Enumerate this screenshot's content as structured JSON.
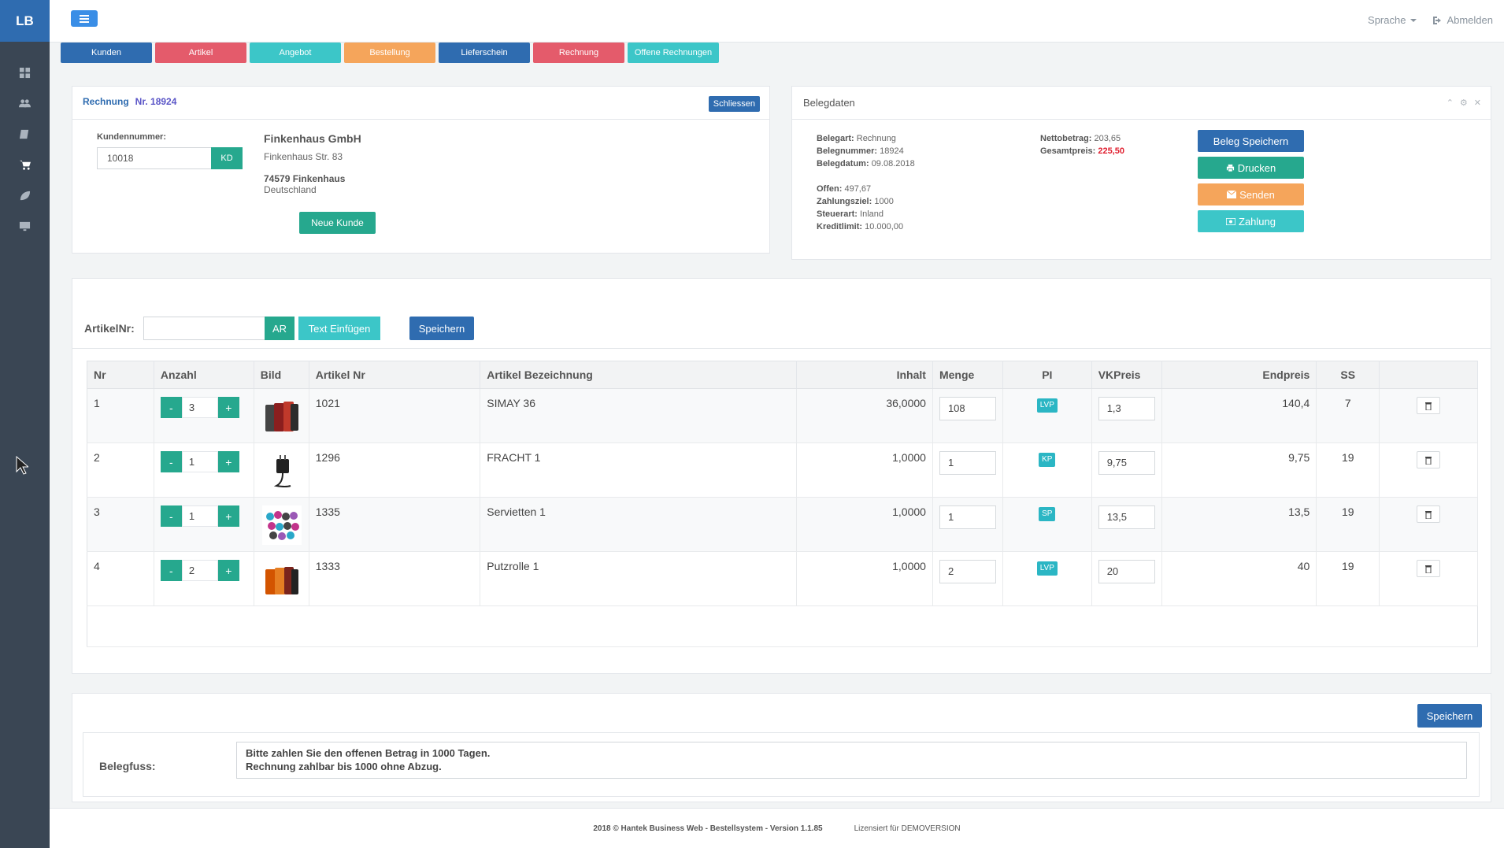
{
  "app": {
    "logo": "LB"
  },
  "sidebar": {
    "items": [
      {
        "icon": "dashboard-icon"
      },
      {
        "icon": "users-icon"
      },
      {
        "icon": "book-icon"
      },
      {
        "icon": "cart-icon"
      },
      {
        "icon": "leaf-icon"
      },
      {
        "icon": "monitor-icon"
      }
    ]
  },
  "topbar": {
    "language": "Sprache",
    "logout": "Abmelden"
  },
  "quicknav": [
    {
      "label": "Kunden",
      "color": "#2f6cb0"
    },
    {
      "label": "Artikel",
      "color": "#e45b6b"
    },
    {
      "label": "Angebot",
      "color": "#3cc6c8"
    },
    {
      "label": "Bestellung",
      "color": "#f5a55b"
    },
    {
      "label": "Lieferschein",
      "color": "#2f6cb0"
    },
    {
      "label": "Rechnung",
      "color": "#e45b6b"
    },
    {
      "label": "Offene Rechnungen",
      "color": "#3cc6c8"
    }
  ],
  "rechnung": {
    "title": "Rechnung",
    "number": "Nr. 18924",
    "close_label": "Schliessen",
    "kundennummer_label": "Kundennummer:",
    "kundennummer_value": "10018",
    "kd_label": "KD",
    "customer": {
      "name": "Finkenhaus GmbH",
      "street": "Finkenhaus Str. 83",
      "city": "74579 Finkenhaus",
      "country": "Deutschland"
    },
    "new_customer_label": "Neue Kunde"
  },
  "belegdaten": {
    "title": "Belegdaten",
    "belegart_label": "Belegart:",
    "belegart": "Rechnung",
    "belegnummer_label": "Belegnummer:",
    "belegnummer": "18924",
    "belegdatum_label": "Belegdatum:",
    "belegdatum": "09.08.2018",
    "offen_label": "Offen:",
    "offen": "497,67",
    "zahlungsziel_label": "Zahlungsziel:",
    "zahlungsziel": "1000",
    "steuerart_label": "Steuerart:",
    "steuerart": "Inland",
    "kreditlimit_label": "Kreditlimit:",
    "kreditlimit": "10.000,00",
    "netto_label": "Nettobetrag:",
    "netto": "203,65",
    "gesamt_label": "Gesamtpreis:",
    "gesamt": "225,50",
    "buttons": {
      "save": "Beleg Speichern",
      "print": "Drucken",
      "send": "Senden",
      "payment": "Zahlung"
    }
  },
  "items": {
    "artikelnr_label": "ArtikelNr:",
    "ar_label": "AR",
    "text_insert_label": "Text Einfügen",
    "save_label": "Speichern",
    "columns": [
      "Nr",
      "Anzahl",
      "Bild",
      "Artikel Nr",
      "Artikel Bezeichnung",
      "Inhalt",
      "Menge",
      "PI",
      "VKPreis",
      "Endpreis",
      "SS"
    ],
    "rows": [
      {
        "nr": "1",
        "anzahl": "3",
        "artikel_nr": "1021",
        "bezeichnung": "SIMAY 36",
        "inhalt": "36,0000",
        "menge": "108",
        "pi": "LVP",
        "vkpreis": "1,3",
        "endpreis": "140,4",
        "ss": "7",
        "img": "phone-cases"
      },
      {
        "nr": "2",
        "anzahl": "1",
        "artikel_nr": "1296",
        "bezeichnung": "FRACHT 1",
        "inhalt": "1,0000",
        "menge": "1",
        "pi": "KP",
        "vkpreis": "9,75",
        "endpreis": "9,75",
        "ss": "19",
        "img": "charger"
      },
      {
        "nr": "3",
        "anzahl": "1",
        "artikel_nr": "1335",
        "bezeichnung": "Servietten 1",
        "inhalt": "1,0000",
        "menge": "1",
        "pi": "SP",
        "vkpreis": "13,5",
        "endpreis": "13,5",
        "ss": "19",
        "img": "napkins"
      },
      {
        "nr": "4",
        "anzahl": "2",
        "artikel_nr": "1333",
        "bezeichnung": "Putzrolle 1",
        "inhalt": "1,0000",
        "menge": "2",
        "pi": "LVP",
        "vkpreis": "20",
        "endpreis": "40",
        "ss": "19",
        "img": "orange-cases"
      }
    ]
  },
  "fuss": {
    "save_label": "Speichern",
    "label": "Belegfuss:",
    "line1": "Bitte zahlen Sie den offenen Betrag in 1000 Tagen.",
    "line2": "Rechnung zahlbar bis 1000 ohne Abzug."
  },
  "footer": {
    "copyright": "2018 © Hantek Business Web - Bestellsystem - Version 1.1.85",
    "license": "Lizensiert für DEMOVERSION"
  }
}
